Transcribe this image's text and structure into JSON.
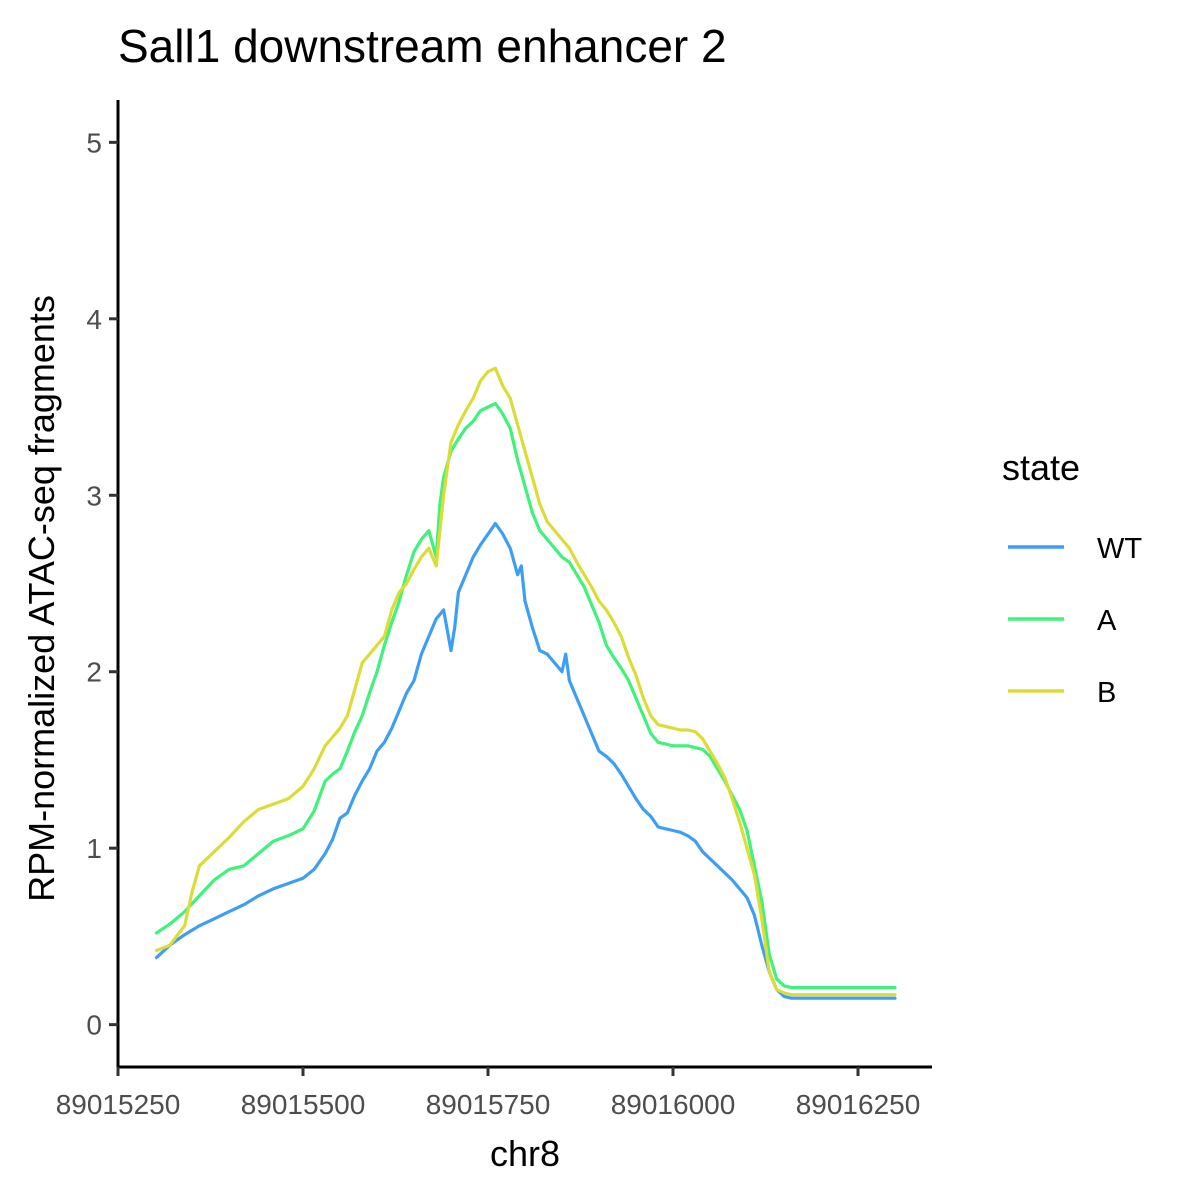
{
  "chart_data": {
    "type": "line",
    "title": "Sall1 downstream enhancer 2",
    "xlabel": "chr8",
    "ylabel": "RPM-normalized ATAC-seq fragments",
    "xlim": [
      89015250,
      89016350
    ],
    "ylim": [
      -0.24,
      5.24
    ],
    "x_ticks": [
      89015250,
      89015500,
      89015750,
      89016000,
      89016250
    ],
    "x_tick_labels": [
      "89015250",
      "89015500",
      "89015750",
      "89016000",
      "89016250"
    ],
    "y_ticks": [
      0,
      1,
      2,
      3,
      4,
      5
    ],
    "y_tick_labels": [
      "0",
      "1",
      "2",
      "3",
      "4",
      "5"
    ],
    "grid": false,
    "legend": {
      "title": "state",
      "placement": "right"
    },
    "series": [
      {
        "name": "WT",
        "color": "#3d9ef5",
        "points": [
          [
            89015302,
            0.38
          ],
          [
            89015320,
            0.45
          ],
          [
            89015340,
            0.51
          ],
          [
            89015360,
            0.56
          ],
          [
            89015380,
            0.6
          ],
          [
            89015400,
            0.64
          ],
          [
            89015420,
            0.68
          ],
          [
            89015440,
            0.73
          ],
          [
            89015460,
            0.77
          ],
          [
            89015480,
            0.8
          ],
          [
            89015500,
            0.83
          ],
          [
            89015515,
            0.88
          ],
          [
            89015530,
            0.97
          ],
          [
            89015540,
            1.05
          ],
          [
            89015550,
            1.17
          ],
          [
            89015560,
            1.2
          ],
          [
            89015570,
            1.3
          ],
          [
            89015580,
            1.38
          ],
          [
            89015590,
            1.45
          ],
          [
            89015600,
            1.55
          ],
          [
            89015610,
            1.6
          ],
          [
            89015620,
            1.68
          ],
          [
            89015630,
            1.78
          ],
          [
            89015640,
            1.88
          ],
          [
            89015650,
            1.95
          ],
          [
            89015660,
            2.1
          ],
          [
            89015670,
            2.2
          ],
          [
            89015680,
            2.3
          ],
          [
            89015690,
            2.35
          ],
          [
            89015700,
            2.12
          ],
          [
            89015705,
            2.25
          ],
          [
            89015710,
            2.45
          ],
          [
            89015720,
            2.55
          ],
          [
            89015730,
            2.65
          ],
          [
            89015740,
            2.72
          ],
          [
            89015750,
            2.78
          ],
          [
            89015760,
            2.84
          ],
          [
            89015770,
            2.78
          ],
          [
            89015780,
            2.7
          ],
          [
            89015790,
            2.55
          ],
          [
            89015795,
            2.6
          ],
          [
            89015800,
            2.4
          ],
          [
            89015810,
            2.25
          ],
          [
            89015820,
            2.12
          ],
          [
            89015830,
            2.1
          ],
          [
            89015840,
            2.05
          ],
          [
            89015850,
            2.0
          ],
          [
            89015855,
            2.1
          ],
          [
            89015860,
            1.95
          ],
          [
            89015870,
            1.85
          ],
          [
            89015880,
            1.75
          ],
          [
            89015890,
            1.65
          ],
          [
            89015900,
            1.55
          ],
          [
            89015910,
            1.52
          ],
          [
            89015920,
            1.48
          ],
          [
            89015930,
            1.42
          ],
          [
            89015940,
            1.35
          ],
          [
            89015950,
            1.28
          ],
          [
            89015960,
            1.22
          ],
          [
            89015970,
            1.18
          ],
          [
            89015980,
            1.12
          ],
          [
            89015990,
            1.11
          ],
          [
            89016000,
            1.1
          ],
          [
            89016010,
            1.09
          ],
          [
            89016020,
            1.07
          ],
          [
            89016030,
            1.04
          ],
          [
            89016040,
            0.98
          ],
          [
            89016050,
            0.94
          ],
          [
            89016060,
            0.9
          ],
          [
            89016070,
            0.86
          ],
          [
            89016080,
            0.82
          ],
          [
            89016090,
            0.77
          ],
          [
            89016100,
            0.72
          ],
          [
            89016110,
            0.62
          ],
          [
            89016120,
            0.45
          ],
          [
            89016130,
            0.3
          ],
          [
            89016140,
            0.2
          ],
          [
            89016150,
            0.16
          ],
          [
            89016160,
            0.15
          ],
          [
            89016170,
            0.15
          ],
          [
            89016200,
            0.15
          ],
          [
            89016300,
            0.15
          ]
        ]
      },
      {
        "name": "A",
        "color": "#3ef27a",
        "points": [
          [
            89015302,
            0.52
          ],
          [
            89015320,
            0.57
          ],
          [
            89015340,
            0.64
          ],
          [
            89015360,
            0.73
          ],
          [
            89015380,
            0.82
          ],
          [
            89015400,
            0.88
          ],
          [
            89015420,
            0.9
          ],
          [
            89015440,
            0.97
          ],
          [
            89015460,
            1.04
          ],
          [
            89015480,
            1.07
          ],
          [
            89015500,
            1.11
          ],
          [
            89015515,
            1.21
          ],
          [
            89015530,
            1.38
          ],
          [
            89015540,
            1.42
          ],
          [
            89015550,
            1.45
          ],
          [
            89015560,
            1.55
          ],
          [
            89015570,
            1.66
          ],
          [
            89015580,
            1.75
          ],
          [
            89015590,
            1.88
          ],
          [
            89015600,
            2.0
          ],
          [
            89015610,
            2.15
          ],
          [
            89015620,
            2.28
          ],
          [
            89015630,
            2.4
          ],
          [
            89015640,
            2.55
          ],
          [
            89015650,
            2.68
          ],
          [
            89015660,
            2.75
          ],
          [
            89015670,
            2.8
          ],
          [
            89015680,
            2.65
          ],
          [
            89015685,
            2.95
          ],
          [
            89015690,
            3.1
          ],
          [
            89015700,
            3.25
          ],
          [
            89015710,
            3.32
          ],
          [
            89015720,
            3.38
          ],
          [
            89015730,
            3.42
          ],
          [
            89015740,
            3.48
          ],
          [
            89015750,
            3.5
          ],
          [
            89015760,
            3.52
          ],
          [
            89015770,
            3.46
          ],
          [
            89015780,
            3.38
          ],
          [
            89015790,
            3.2
          ],
          [
            89015800,
            3.05
          ],
          [
            89015810,
            2.9
          ],
          [
            89015820,
            2.8
          ],
          [
            89015830,
            2.75
          ],
          [
            89015840,
            2.7
          ],
          [
            89015850,
            2.65
          ],
          [
            89015860,
            2.62
          ],
          [
            89015870,
            2.55
          ],
          [
            89015880,
            2.48
          ],
          [
            89015890,
            2.38
          ],
          [
            89015900,
            2.28
          ],
          [
            89015910,
            2.15
          ],
          [
            89015920,
            2.08
          ],
          [
            89015930,
            2.02
          ],
          [
            89015940,
            1.95
          ],
          [
            89015950,
            1.85
          ],
          [
            89015960,
            1.75
          ],
          [
            89015970,
            1.65
          ],
          [
            89015980,
            1.6
          ],
          [
            89015990,
            1.59
          ],
          [
            89016000,
            1.58
          ],
          [
            89016010,
            1.58
          ],
          [
            89016020,
            1.58
          ],
          [
            89016030,
            1.57
          ],
          [
            89016040,
            1.56
          ],
          [
            89016050,
            1.52
          ],
          [
            89016060,
            1.45
          ],
          [
            89016070,
            1.38
          ],
          [
            89016080,
            1.3
          ],
          [
            89016090,
            1.22
          ],
          [
            89016100,
            1.1
          ],
          [
            89016110,
            0.9
          ],
          [
            89016120,
            0.7
          ],
          [
            89016130,
            0.4
          ],
          [
            89016140,
            0.26
          ],
          [
            89016150,
            0.22
          ],
          [
            89016160,
            0.21
          ],
          [
            89016200,
            0.21
          ],
          [
            89016300,
            0.21
          ]
        ]
      },
      {
        "name": "B",
        "color": "#dcdc36",
        "points": [
          [
            89015302,
            0.42
          ],
          [
            89015320,
            0.45
          ],
          [
            89015340,
            0.56
          ],
          [
            89015350,
            0.75
          ],
          [
            89015360,
            0.9
          ],
          [
            89015370,
            0.94
          ],
          [
            89015380,
            0.98
          ],
          [
            89015400,
            1.06
          ],
          [
            89015420,
            1.15
          ],
          [
            89015440,
            1.22
          ],
          [
            89015460,
            1.25
          ],
          [
            89015480,
            1.28
          ],
          [
            89015500,
            1.35
          ],
          [
            89015515,
            1.45
          ],
          [
            89015530,
            1.58
          ],
          [
            89015540,
            1.63
          ],
          [
            89015550,
            1.68
          ],
          [
            89015560,
            1.75
          ],
          [
            89015570,
            1.9
          ],
          [
            89015580,
            2.05
          ],
          [
            89015590,
            2.1
          ],
          [
            89015600,
            2.15
          ],
          [
            89015610,
            2.2
          ],
          [
            89015620,
            2.35
          ],
          [
            89015630,
            2.45
          ],
          [
            89015640,
            2.5
          ],
          [
            89015650,
            2.58
          ],
          [
            89015660,
            2.65
          ],
          [
            89015670,
            2.7
          ],
          [
            89015680,
            2.6
          ],
          [
            89015690,
            3.0
          ],
          [
            89015700,
            3.3
          ],
          [
            89015710,
            3.4
          ],
          [
            89015720,
            3.48
          ],
          [
            89015730,
            3.55
          ],
          [
            89015740,
            3.65
          ],
          [
            89015750,
            3.7
          ],
          [
            89015760,
            3.72
          ],
          [
            89015770,
            3.62
          ],
          [
            89015780,
            3.55
          ],
          [
            89015790,
            3.4
          ],
          [
            89015800,
            3.25
          ],
          [
            89015810,
            3.1
          ],
          [
            89015820,
            2.95
          ],
          [
            89015830,
            2.85
          ],
          [
            89015840,
            2.8
          ],
          [
            89015850,
            2.75
          ],
          [
            89015860,
            2.7
          ],
          [
            89015870,
            2.62
          ],
          [
            89015880,
            2.55
          ],
          [
            89015890,
            2.48
          ],
          [
            89015900,
            2.4
          ],
          [
            89015910,
            2.35
          ],
          [
            89015920,
            2.28
          ],
          [
            89015930,
            2.2
          ],
          [
            89015940,
            2.08
          ],
          [
            89015950,
            1.98
          ],
          [
            89015960,
            1.85
          ],
          [
            89015970,
            1.75
          ],
          [
            89015980,
            1.7
          ],
          [
            89015990,
            1.69
          ],
          [
            89016000,
            1.68
          ],
          [
            89016010,
            1.67
          ],
          [
            89016020,
            1.67
          ],
          [
            89016030,
            1.66
          ],
          [
            89016040,
            1.62
          ],
          [
            89016050,
            1.55
          ],
          [
            89016060,
            1.48
          ],
          [
            89016070,
            1.4
          ],
          [
            89016080,
            1.28
          ],
          [
            89016090,
            1.15
          ],
          [
            89016100,
            1.0
          ],
          [
            89016110,
            0.85
          ],
          [
            89016120,
            0.6
          ],
          [
            89016130,
            0.3
          ],
          [
            89016140,
            0.2
          ],
          [
            89016150,
            0.18
          ],
          [
            89016160,
            0.17
          ],
          [
            89016200,
            0.17
          ],
          [
            89016300,
            0.17
          ]
        ]
      }
    ]
  }
}
